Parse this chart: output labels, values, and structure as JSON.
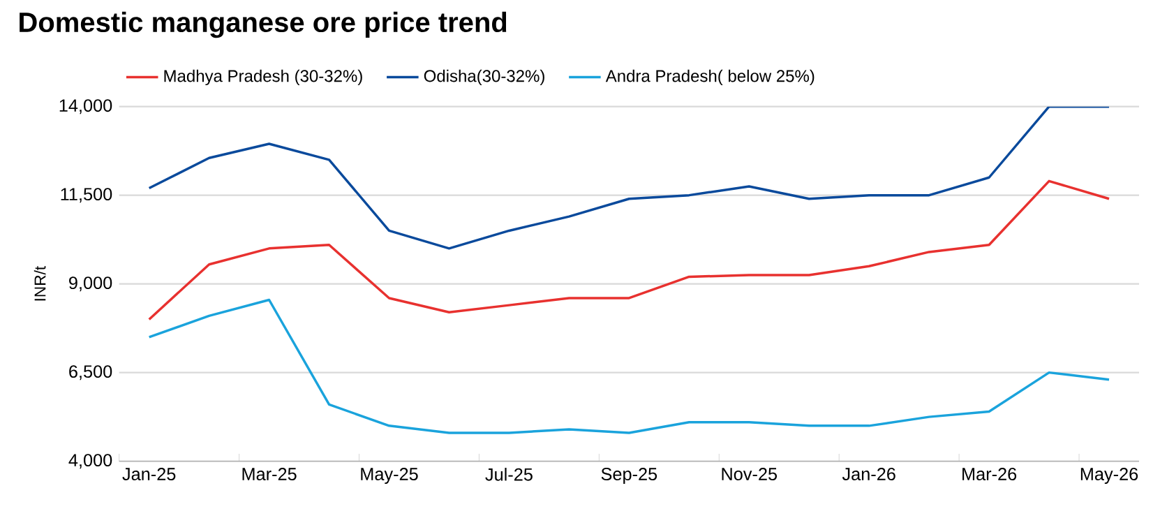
{
  "chart_data": {
    "type": "line",
    "title": "Domestic manganese ore price trend",
    "ylabel": "INR/t",
    "categories": [
      "Jan-25",
      null,
      "Mar-25",
      null,
      "May-25",
      null,
      "Jul-25",
      null,
      "Sep-25",
      null,
      "Nov-25",
      null,
      "Jan-26",
      null,
      "Mar-26",
      null,
      "May-26"
    ],
    "series": [
      {
        "name": "Madhya Pradesh (30-32%)",
        "color": "#e8312f",
        "values": [
          8000,
          9550,
          10000,
          10100,
          8600,
          8200,
          8400,
          8600,
          8600,
          9200,
          9250,
          9250,
          9500,
          9900,
          10100,
          11900,
          11400
        ]
      },
      {
        "name": "Odisha(30-32%)",
        "color": "#0a4a9c",
        "values": [
          11700,
          12550,
          12950,
          12500,
          10500,
          10000,
          10500,
          10900,
          11400,
          11500,
          11750,
          11400,
          11500,
          11500,
          12000,
          14000,
          14000
        ]
      },
      {
        "name": "Andra Pradesh( below 25%)",
        "color": "#1aa3dc",
        "values": [
          7500,
          8100,
          8550,
          5600,
          5000,
          4800,
          4800,
          4900,
          4800,
          5100,
          5100,
          5000,
          5000,
          5250,
          5400,
          6500,
          6300
        ]
      }
    ],
    "ylim": [
      4000,
      14000
    ],
    "yticks": [
      {
        "value": 4000,
        "label": "4,000"
      },
      {
        "value": 6500,
        "label": "6,500"
      },
      {
        "value": 9000,
        "label": "9,000"
      },
      {
        "value": 11500,
        "label": "11,500"
      },
      {
        "value": 14000,
        "label": "14,000"
      }
    ],
    "grid": "y",
    "legend": "top left",
    "marker": "none",
    "line_style": "solid"
  }
}
